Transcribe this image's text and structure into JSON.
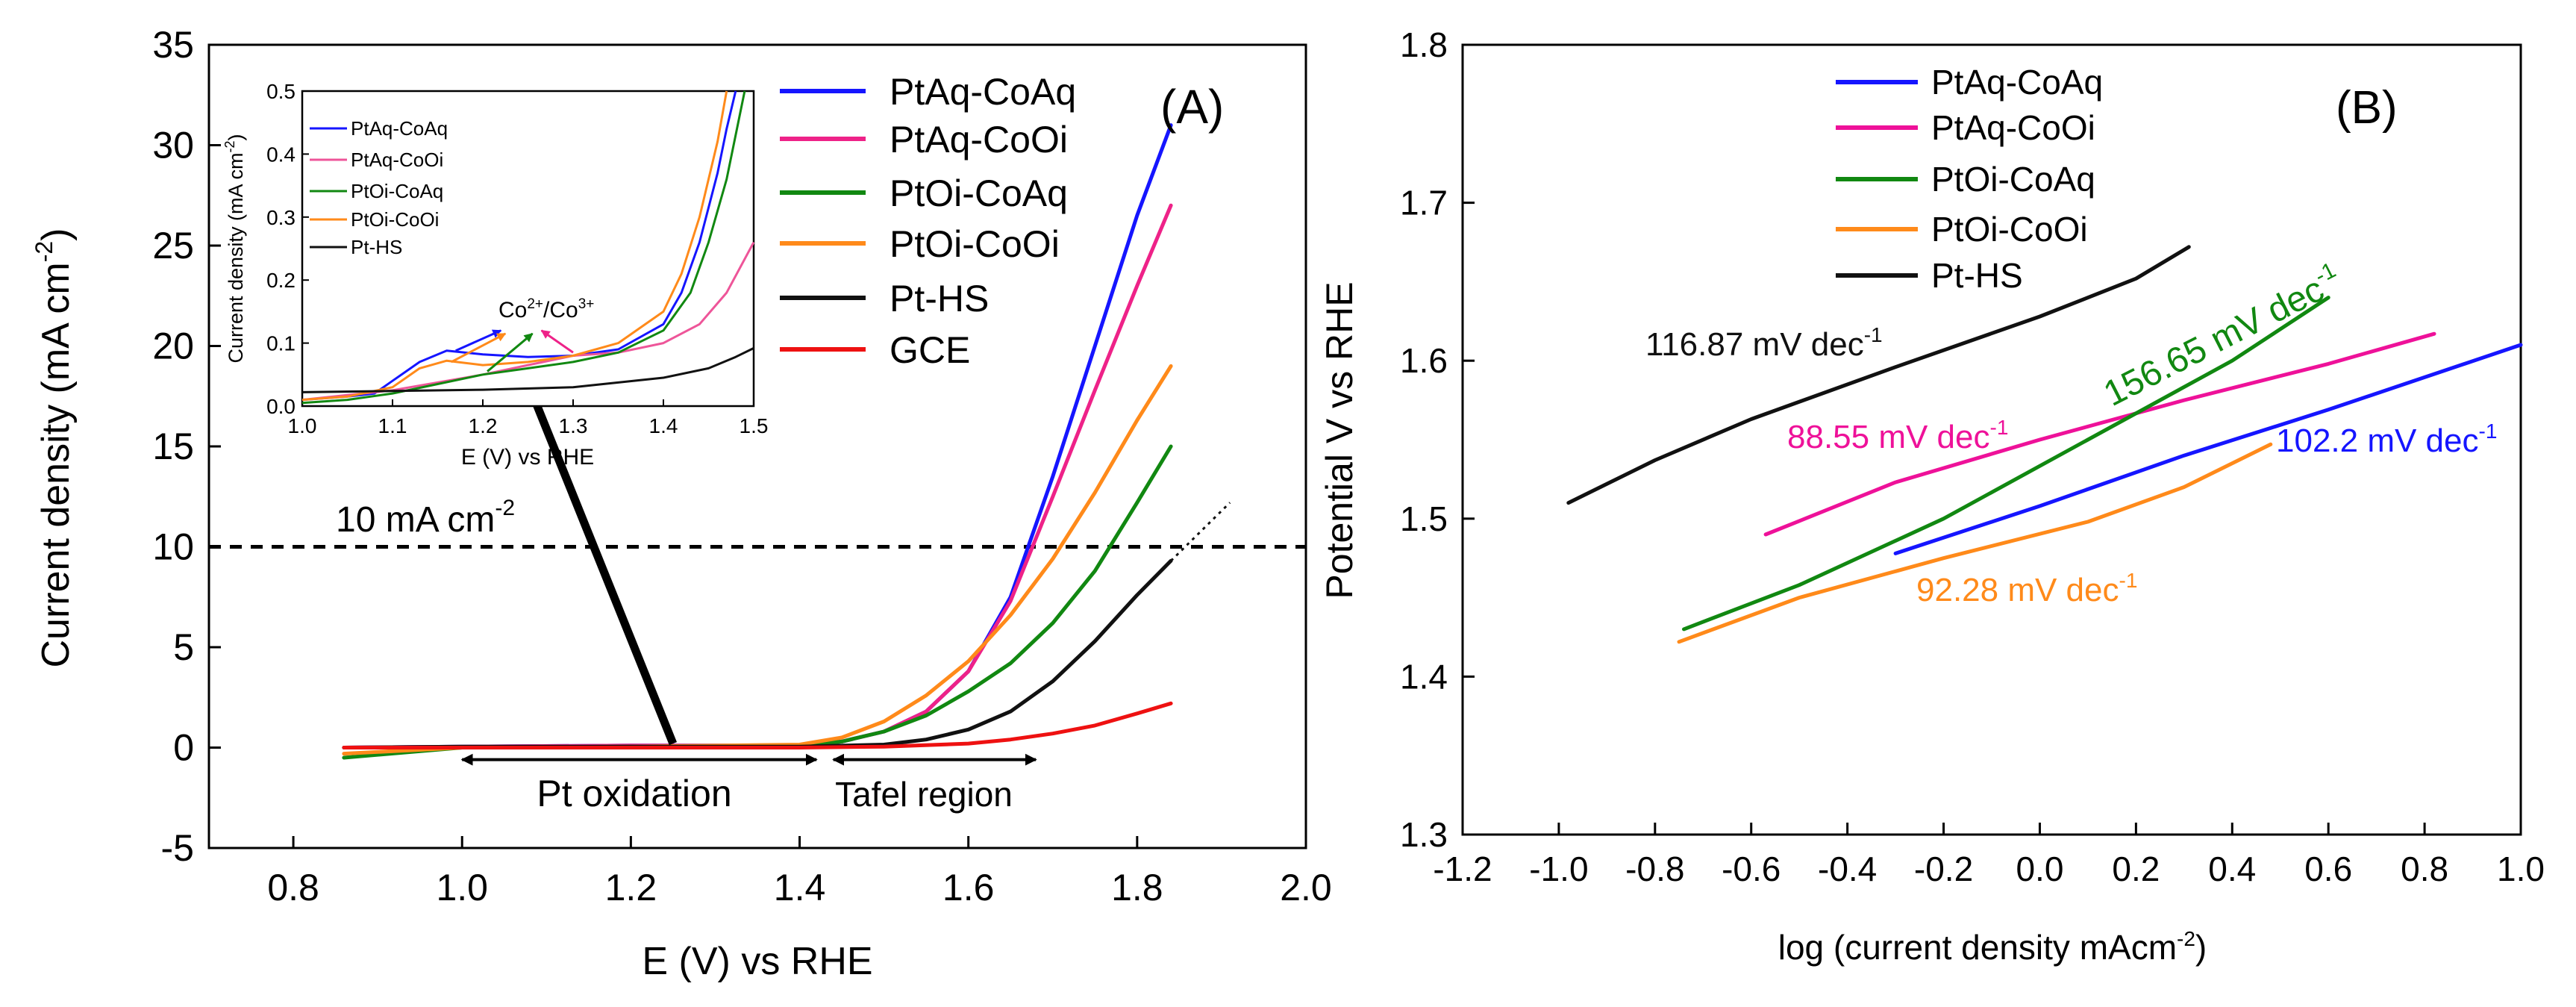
{
  "chart_data": [
    {
      "panel": "(A)",
      "type": "line",
      "xlabel": "E (V) vs RHE",
      "ylabel_main": "Current density (mA cm",
      "ylabel_sup": "-2",
      "ylabel_close": ")",
      "xlim": [
        0.7,
        2.0
      ],
      "ylim": [
        -5,
        35
      ],
      "xticks": [
        0.8,
        1.0,
        1.2,
        1.4,
        1.6,
        1.8,
        2.0
      ],
      "xtick_labels": [
        "0.8",
        "1.0",
        "1.2",
        "1.4",
        "1.6",
        "1.8",
        "2.0"
      ],
      "yticks": [
        -5,
        0,
        5,
        10,
        15,
        20,
        25,
        30,
        35
      ],
      "ytick_labels": [
        "-5",
        "0",
        "5",
        "10",
        "15",
        "20",
        "25",
        "30",
        "35"
      ],
      "reference_line": {
        "y": 10,
        "label_main": "10 mA cm",
        "label_sup": "-2"
      },
      "annotations": {
        "pt_oxidation": {
          "label": "Pt oxidation",
          "x_range": [
            1.0,
            1.42
          ],
          "y": -0.6
        },
        "tafel_region": {
          "label": "Tafel region",
          "x_range": [
            1.44,
            1.68
          ],
          "y": -0.6
        },
        "inset_pointer": {
          "from": [
            1.25,
            0.2
          ],
          "to": [
            1.07,
            19.0
          ]
        }
      },
      "series": [
        {
          "name": "PtAq-CoAq",
          "color": "#1515ff",
          "x": [
            0.86,
            1.0,
            1.2,
            1.4,
            1.45,
            1.5,
            1.55,
            1.6,
            1.65,
            1.7,
            1.75,
            1.8,
            1.84
          ],
          "y": [
            0,
            0.05,
            0.1,
            0.1,
            0.3,
            0.8,
            1.8,
            3.8,
            7.5,
            13.5,
            20,
            26.5,
            31
          ]
        },
        {
          "name": "PtAq-CoOi",
          "color": "#ee2288",
          "x": [
            0.86,
            1.0,
            1.2,
            1.4,
            1.45,
            1.5,
            1.55,
            1.6,
            1.65,
            1.7,
            1.75,
            1.8,
            1.84
          ],
          "y": [
            0,
            0.05,
            0.1,
            0.1,
            0.3,
            0.8,
            1.8,
            3.8,
            7.3,
            12.5,
            17.8,
            23,
            27
          ]
        },
        {
          "name": "PtOi-CoAq",
          "color": "#118811",
          "x": [
            0.86,
            1.0,
            1.2,
            1.4,
            1.45,
            1.5,
            1.55,
            1.6,
            1.65,
            1.7,
            1.75,
            1.8,
            1.84
          ],
          "y": [
            -0.5,
            0,
            0.05,
            0.1,
            0.3,
            0.8,
            1.6,
            2.8,
            4.2,
            6.2,
            8.8,
            12.2,
            15
          ]
        },
        {
          "name": "PtOi-CoOi",
          "color": "#ff8a1a",
          "x": [
            0.86,
            1.0,
            1.2,
            1.4,
            1.45,
            1.5,
            1.55,
            1.6,
            1.65,
            1.7,
            1.75,
            1.8,
            1.84
          ],
          "y": [
            -0.3,
            0,
            0.05,
            0.15,
            0.5,
            1.3,
            2.6,
            4.3,
            6.6,
            9.4,
            12.7,
            16.3,
            19
          ]
        },
        {
          "name": "Pt-HS",
          "color": "#111111",
          "x": [
            0.86,
            1.0,
            1.2,
            1.4,
            1.5,
            1.55,
            1.6,
            1.65,
            1.7,
            1.75,
            1.8,
            1.84
          ],
          "y": [
            0,
            0.05,
            0.05,
            0.05,
            0.15,
            0.4,
            0.9,
            1.8,
            3.3,
            5.3,
            7.6,
            9.3
          ],
          "extension": {
            "x": [
              1.84,
              1.91
            ],
            "y": [
              9.3,
              12.2
            ]
          }
        },
        {
          "name": "GCE",
          "color": "#ee1111",
          "x": [
            0.86,
            1.0,
            1.2,
            1.4,
            1.5,
            1.6,
            1.65,
            1.7,
            1.75,
            1.8,
            1.84
          ],
          "y": [
            0,
            0,
            0,
            0,
            0.05,
            0.2,
            0.4,
            0.7,
            1.1,
            1.7,
            2.2
          ]
        }
      ],
      "legend_position": "top-right",
      "inset": {
        "type": "line",
        "xlabel": "E (V) vs RHE",
        "ylabel_main": "Current density (mA cm",
        "ylabel_sup": "-2",
        "ylabel_close": ")",
        "xlim": [
          1.0,
          1.5
        ],
        "ylim": [
          0,
          0.5
        ],
        "xtick_labels": [
          "1.0",
          "1.1",
          "1.2",
          "1.3",
          "1.4",
          "1.5"
        ],
        "ytick_labels": [
          "0.0",
          "0.1",
          "0.2",
          "0.3",
          "0.4",
          "0.5"
        ],
        "annotation": {
          "co": "Co",
          "sup1": "2+",
          "mid": "/Co",
          "sup2": "3+"
        },
        "series": [
          {
            "name": "PtAq-CoAq",
            "color": "#1515ff",
            "x": [
              1.0,
              1.05,
              1.08,
              1.1,
              1.13,
              1.16,
              1.2,
              1.25,
              1.3,
              1.35,
              1.4,
              1.42,
              1.44,
              1.46,
              1.47,
              1.48
            ],
            "y": [
              0.01,
              0.015,
              0.02,
              0.04,
              0.07,
              0.088,
              0.082,
              0.078,
              0.08,
              0.09,
              0.13,
              0.18,
              0.26,
              0.37,
              0.44,
              0.5
            ]
          },
          {
            "name": "PtAq-CoOi",
            "color": "#ee5599",
            "x": [
              1.0,
              1.1,
              1.2,
              1.25,
              1.3,
              1.35,
              1.4,
              1.44,
              1.47,
              1.5
            ],
            "y": [
              0.01,
              0.025,
              0.05,
              0.065,
              0.08,
              0.085,
              0.1,
              0.13,
              0.18,
              0.26
            ]
          },
          {
            "name": "PtOi-CoAq",
            "color": "#118811",
            "x": [
              1.0,
              1.05,
              1.1,
              1.15,
              1.2,
              1.25,
              1.3,
              1.35,
              1.4,
              1.43,
              1.45,
              1.47,
              1.49
            ],
            "y": [
              0.005,
              0.01,
              0.02,
              0.035,
              0.05,
              0.06,
              0.07,
              0.085,
              0.12,
              0.18,
              0.26,
              0.36,
              0.5
            ]
          },
          {
            "name": "PtOi-CoOi",
            "color": "#ff8a1a",
            "x": [
              1.0,
              1.05,
              1.1,
              1.13,
              1.16,
              1.2,
              1.25,
              1.3,
              1.35,
              1.4,
              1.42,
              1.44,
              1.46,
              1.47
            ],
            "y": [
              0.01,
              0.015,
              0.03,
              0.06,
              0.072,
              0.065,
              0.07,
              0.08,
              0.1,
              0.15,
              0.21,
              0.3,
              0.42,
              0.5
            ]
          },
          {
            "name": "Pt-HS",
            "color": "#111111",
            "x": [
              1.0,
              1.1,
              1.2,
              1.3,
              1.4,
              1.45,
              1.48,
              1.5
            ],
            "y": [
              0.022,
              0.024,
              0.026,
              0.03,
              0.045,
              0.06,
              0.078,
              0.092
            ]
          }
        ],
        "arrows": [
          {
            "color": "#1515ff",
            "from": [
              1.17,
              0.088
            ],
            "to": [
              1.22,
              0.12
            ]
          },
          {
            "color": "#ff8a1a",
            "from": [
              1.165,
              0.07
            ],
            "to": [
              1.225,
              0.115
            ]
          },
          {
            "color": "#118811",
            "from": [
              1.205,
              0.055
            ],
            "to": [
              1.255,
              0.115
            ]
          },
          {
            "color": "#ee2288",
            "from": [
              1.3,
              0.085
            ],
            "to": [
              1.265,
              0.12
            ]
          }
        ]
      }
    },
    {
      "panel": "(B)",
      "type": "line",
      "xlabel_main": "log (current density mAcm",
      "xlabel_sup": "-2",
      "xlabel_close": ")",
      "ylabel": "Potential V vs RHE",
      "xlim": [
        -1.2,
        1.0
      ],
      "ylim": [
        1.3,
        1.8
      ],
      "xticks": [
        -1.2,
        -1.0,
        -0.8,
        -0.6,
        -0.4,
        -0.2,
        0.0,
        0.2,
        0.4,
        0.6,
        0.8,
        1.0
      ],
      "xtick_labels": [
        "-1.2",
        "-1.0",
        "-0.8",
        "-0.6",
        "-0.4",
        "-0.2",
        "0.0",
        "0.2",
        "0.4",
        "0.6",
        "0.8",
        "1.0"
      ],
      "yticks": [
        1.3,
        1.4,
        1.5,
        1.6,
        1.7,
        1.8
      ],
      "ytick_labels": [
        "1.3",
        "1.4",
        "1.5",
        "1.6",
        "1.7",
        "1.8"
      ],
      "legend_position": "top-left",
      "series": [
        {
          "name": "PtAq-CoAq",
          "color": "#1515ff",
          "x": [
            -0.3,
            0.0,
            0.3,
            0.6,
            1.0
          ],
          "y": [
            1.478,
            1.508,
            1.54,
            1.569,
            1.61
          ],
          "slope_label": {
            "main": "102.2 mV dec",
            "sup": "-1"
          }
        },
        {
          "name": "PtAq-CoOi",
          "color": "#ee1199",
          "x": [
            -0.57,
            -0.3,
            0.0,
            0.3,
            0.6,
            0.82
          ],
          "y": [
            1.49,
            1.523,
            1.55,
            1.575,
            1.598,
            1.617
          ],
          "slope_label": {
            "main": "88.55 mV dec",
            "sup": "-1"
          }
        },
        {
          "name": "PtOi-CoAq",
          "color": "#118811",
          "x": [
            -0.74,
            -0.5,
            -0.2,
            0.1,
            0.4,
            0.6
          ],
          "y": [
            1.43,
            1.458,
            1.5,
            1.55,
            1.6,
            1.64
          ],
          "slope_label": {
            "main": "156.65 mV dec",
            "sup": "-1"
          }
        },
        {
          "name": "PtOi-CoOi",
          "color": "#ff8a1a",
          "x": [
            -0.75,
            -0.5,
            -0.2,
            0.1,
            0.3,
            0.48
          ],
          "y": [
            1.422,
            1.45,
            1.475,
            1.498,
            1.52,
            1.547
          ],
          "slope_label": {
            "main": "92.28 mV dec",
            "sup": "-1"
          }
        },
        {
          "name": "Pt-HS",
          "color": "#111111",
          "x": [
            -0.98,
            -0.8,
            -0.6,
            -0.3,
            0.0,
            0.2,
            0.31
          ],
          "y": [
            1.51,
            1.537,
            1.563,
            1.596,
            1.628,
            1.652,
            1.672
          ],
          "slope_label": {
            "main": "116.87 mV dec",
            "sup": "-1"
          }
        }
      ]
    }
  ]
}
